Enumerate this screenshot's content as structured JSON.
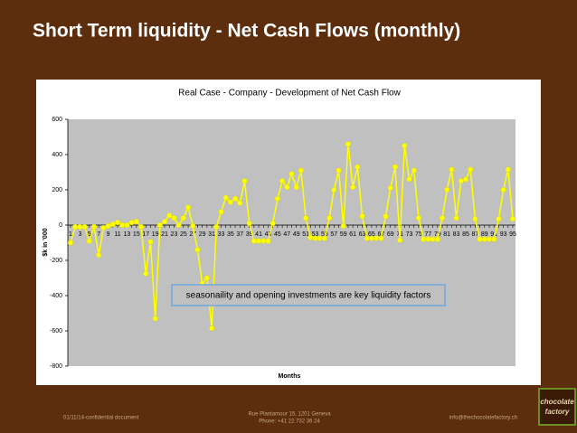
{
  "slide": {
    "title": "Short Term liquidity  -  Net Cash Flows (monthly)",
    "footer_left": "01/11/14-confidential document",
    "footer_address": "Rue Plantamour 15, 1201 Geneva",
    "footer_phone": "Phone: +41 22 732 36 24",
    "footer_email": "info@thechocolatefactory.ch",
    "logo_line1": "chocolate",
    "logo_line2": "factory"
  },
  "chart_data": {
    "type": "line",
    "title": "Real Case - Company - Development of Net Cash Flow",
    "xlabel": "Months",
    "ylabel": "$k in '000",
    "annotation": "seasonaility and opening investments are key liquidity factors",
    "categories": [
      1,
      null,
      3,
      null,
      5,
      null,
      7,
      null,
      9,
      null,
      11,
      null,
      13,
      null,
      15,
      null,
      17,
      null,
      19,
      null,
      21,
      null,
      23,
      null,
      25,
      null,
      27,
      null,
      29,
      null,
      31,
      null,
      33,
      null,
      35,
      null,
      37,
      null,
      39,
      null,
      41,
      null,
      43,
      null,
      45,
      null,
      47,
      null,
      49,
      null,
      51,
      null,
      53,
      null,
      55,
      null,
      57,
      null,
      59,
      null,
      61,
      null,
      63,
      null,
      65,
      null,
      67,
      null,
      69,
      null,
      71,
      null,
      73,
      null,
      75,
      null,
      77,
      null,
      79,
      null,
      81,
      null,
      83,
      null,
      85,
      null,
      87,
      null,
      89,
      null,
      91,
      null,
      93,
      null,
      95
    ],
    "series": [
      {
        "name": "Net Cash Flow",
        "color": "#ffff00",
        "values": [
          -100,
          -10,
          -10,
          -10,
          -90,
          -10,
          -170,
          -15,
          -5,
          5,
          15,
          0,
          0,
          15,
          20,
          -10,
          -275,
          -95,
          -530,
          0,
          20,
          55,
          40,
          0,
          40,
          100,
          -5,
          -140,
          -330,
          -300,
          -585,
          -10,
          75,
          155,
          130,
          150,
          125,
          250,
          10,
          -90,
          -90,
          -90,
          -90,
          10,
          150,
          250,
          215,
          290,
          215,
          310,
          40,
          -70,
          -75,
          -75,
          -75,
          40,
          200,
          310,
          -5,
          460,
          215,
          330,
          50,
          -75,
          -75,
          -75,
          -75,
          50,
          210,
          330,
          -85,
          450,
          260,
          310,
          40,
          -80,
          -80,
          -80,
          -80,
          40,
          200,
          315,
          40,
          250,
          260,
          315,
          35,
          -80,
          -80,
          -80,
          -80,
          35,
          200,
          315,
          35
        ]
      }
    ],
    "ylim": [
      -800,
      600
    ],
    "yticks": [
      -800,
      -600,
      -400,
      -200,
      0,
      200,
      400,
      600
    ],
    "grid": false,
    "plot_background": "#c0c0c0"
  }
}
